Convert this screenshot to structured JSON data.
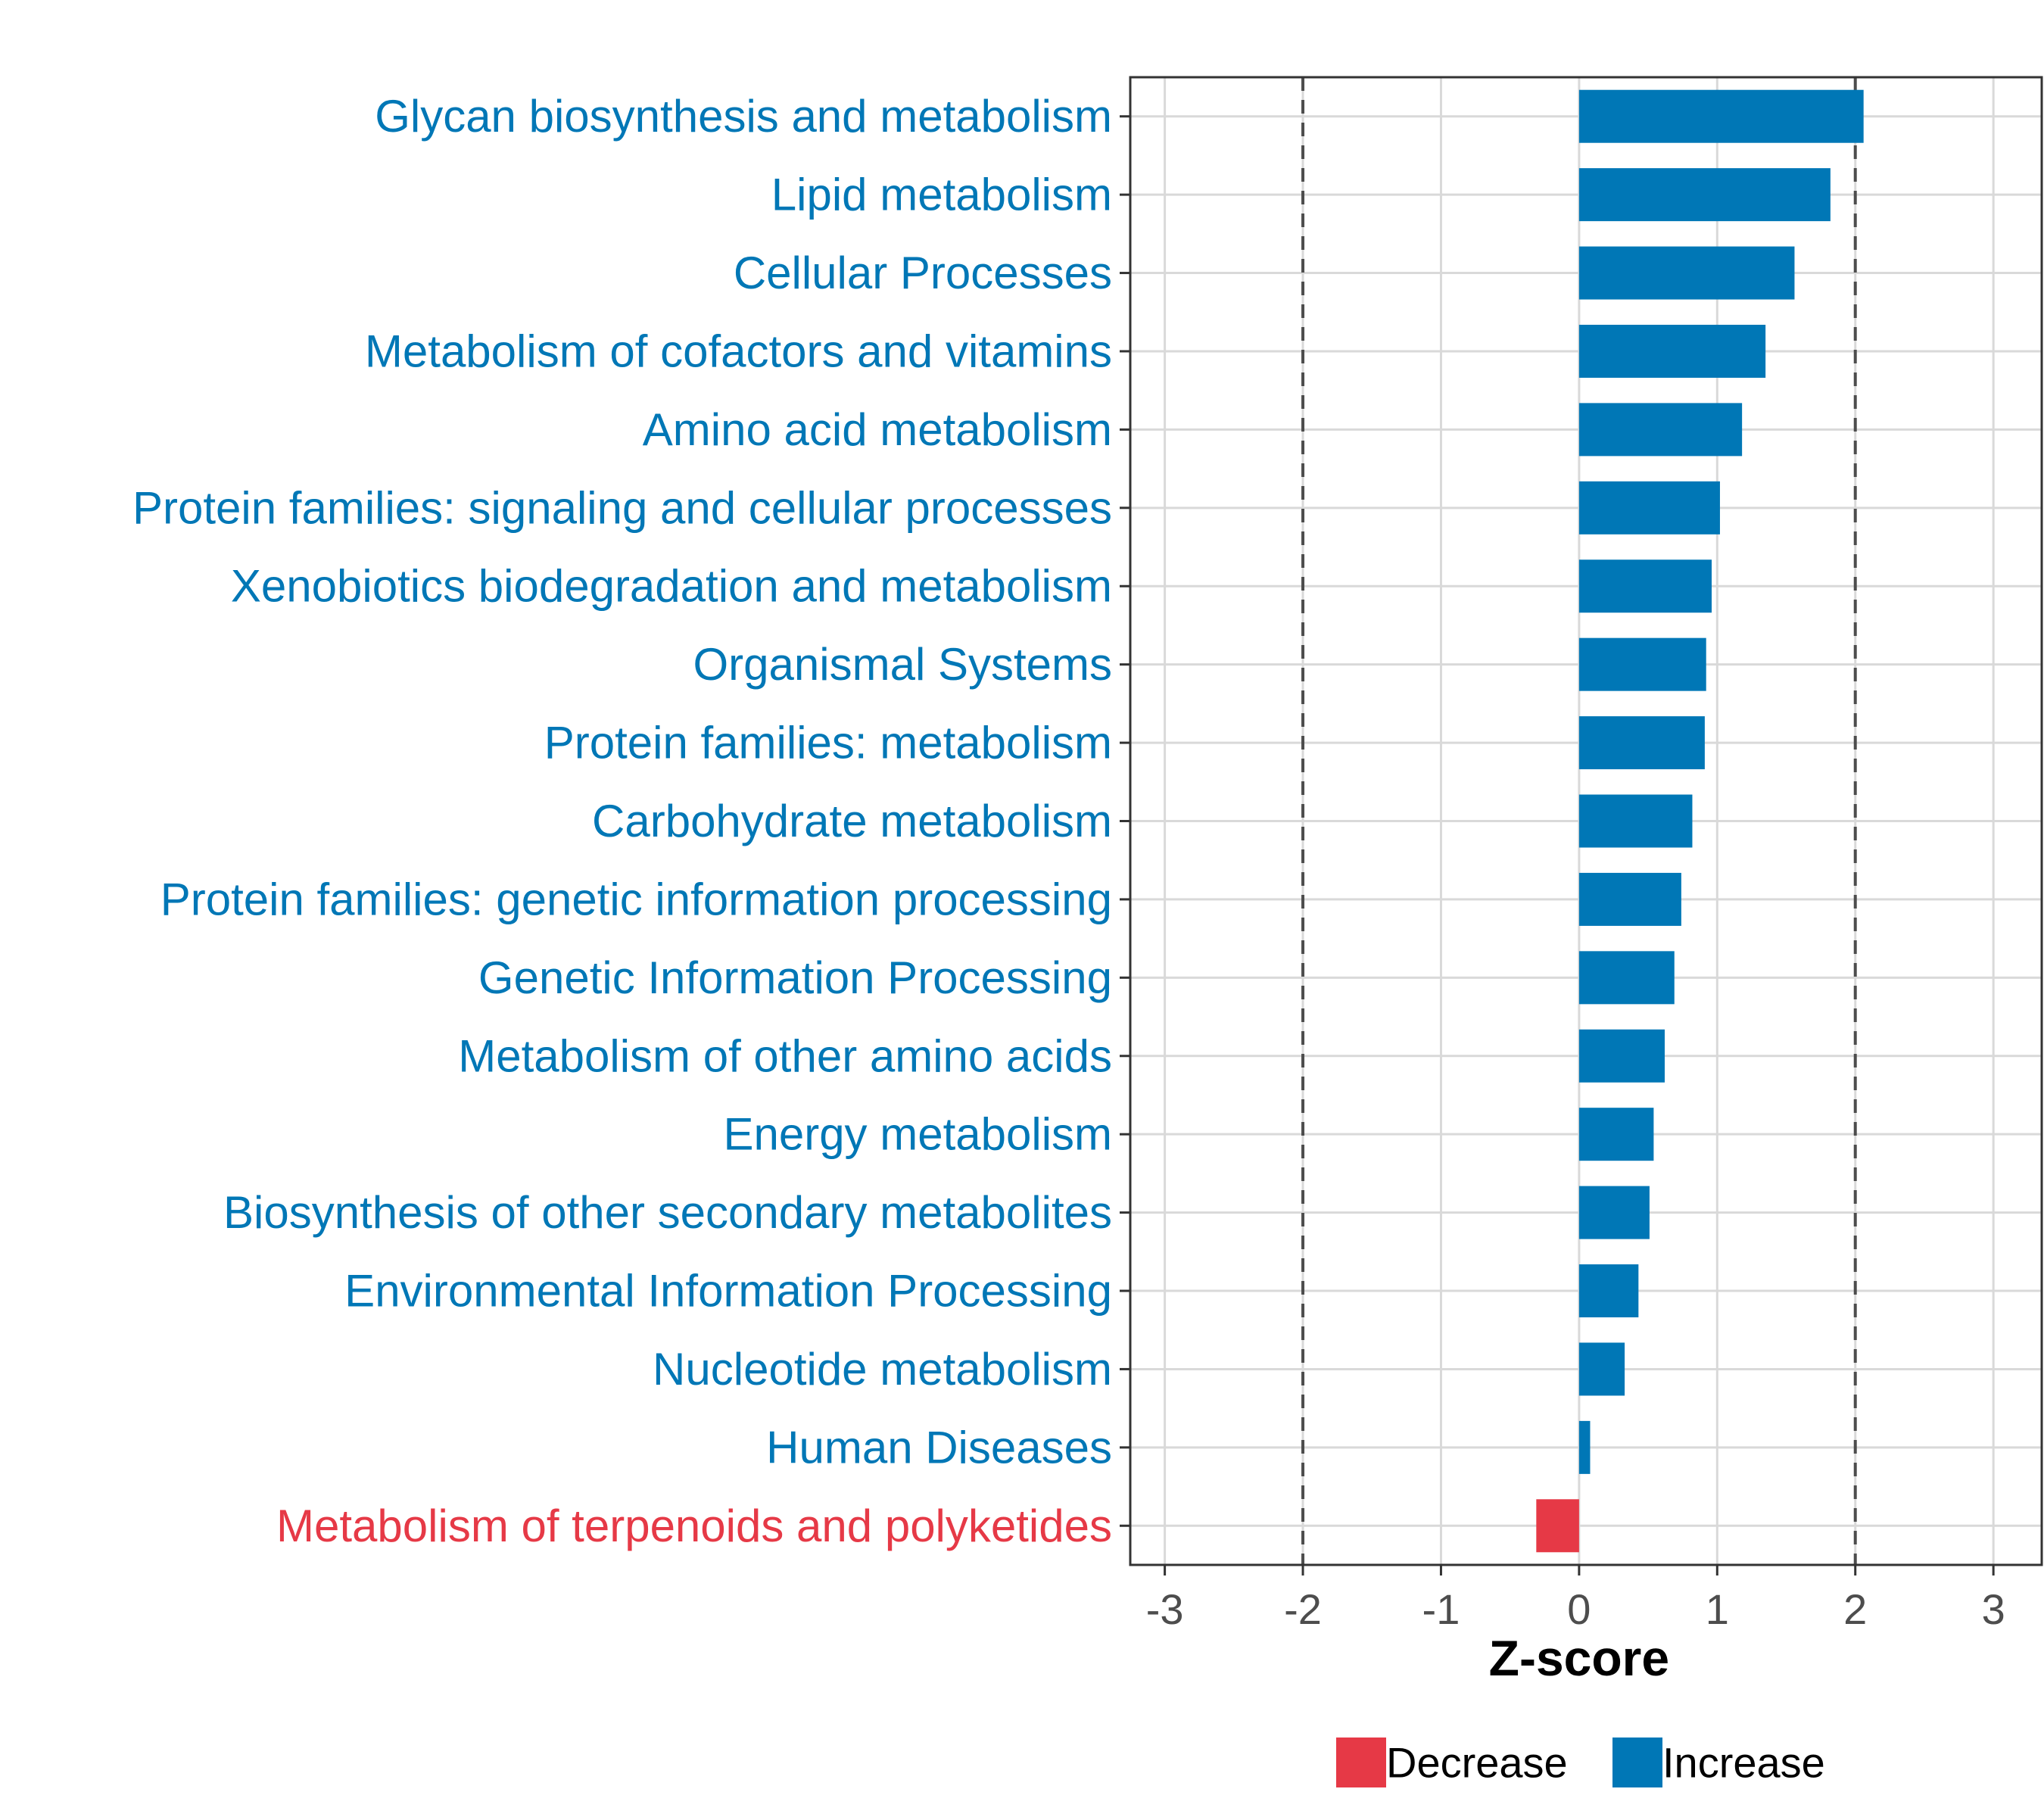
{
  "chart_data": {
    "type": "bar",
    "orientation": "horizontal",
    "xlabel": "Z-score",
    "ylabel": "",
    "xlim": [
      -3.25,
      3.35
    ],
    "xticks": [
      -3,
      -2,
      -1,
      0,
      1,
      2,
      3
    ],
    "tick_labels": [
      "-3",
      "-2",
      "-1",
      "0",
      "1",
      "2",
      "3"
    ],
    "reference_lines": [
      -2,
      2
    ],
    "grid": true,
    "categories": [
      "Glycan biosynthesis and metabolism",
      "Lipid metabolism",
      "Cellular Processes",
      "Metabolism of cofactors and vitamins",
      "Amino acid metabolism",
      "Protein families: signaling and cellular processes",
      "Xenobiotics biodegradation and metabolism",
      "Organismal Systems",
      "Protein families: metabolism",
      "Carbohydrate metabolism",
      "Protein families: genetic information processing",
      "Genetic Information Processing",
      "Metabolism of other amino acids",
      "Energy metabolism",
      "Biosynthesis of other secondary metabolites",
      "Environmental Information Processing",
      "Nucleotide metabolism",
      "Human Diseases",
      "Metabolism of terpenoids and polyketides"
    ],
    "values": [
      2.06,
      1.82,
      1.56,
      1.35,
      1.18,
      1.02,
      0.96,
      0.92,
      0.91,
      0.82,
      0.74,
      0.69,
      0.62,
      0.54,
      0.51,
      0.43,
      0.33,
      0.08,
      -0.31
    ],
    "direction": [
      "Increase",
      "Increase",
      "Increase",
      "Increase",
      "Increase",
      "Increase",
      "Increase",
      "Increase",
      "Increase",
      "Increase",
      "Increase",
      "Increase",
      "Increase",
      "Increase",
      "Increase",
      "Increase",
      "Increase",
      "Increase",
      "Decrease"
    ],
    "legend": {
      "position": "bottom",
      "entries": [
        {
          "label": "Decrease",
          "color": "#E63946"
        },
        {
          "label": "Increase",
          "color": "#0077B6"
        }
      ]
    }
  },
  "colors": {
    "increase": "#0077B6",
    "decrease": "#E63946",
    "grid": "#d9d9d9",
    "reference_line": "#4d4d4d"
  }
}
